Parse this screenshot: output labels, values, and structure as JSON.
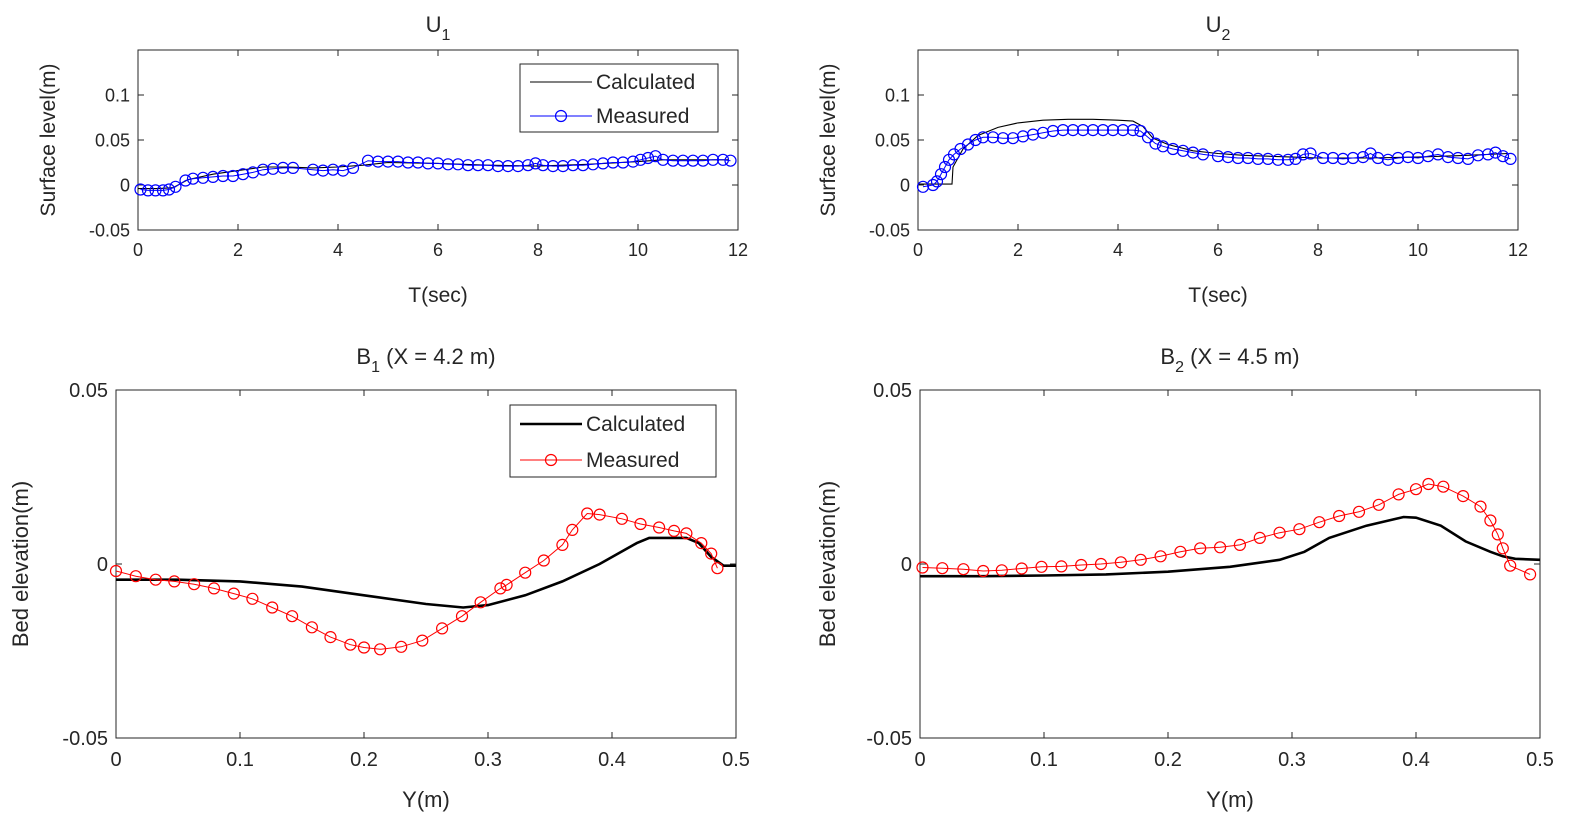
{
  "chart_data": [
    {
      "id": "u1",
      "type": "line",
      "title": "U",
      "title_sub": "1",
      "title_suffix": "",
      "xlabel": "T(sec)",
      "ylabel": "Surface level(m)",
      "xlim": [
        0,
        12
      ],
      "ylim": [
        -0.05,
        0.15
      ],
      "xticks": [
        0,
        2,
        4,
        6,
        8,
        10,
        12
      ],
      "yticks": [
        -0.05,
        0,
        0.05,
        0.1
      ],
      "xtick_labels": [
        "0",
        "2",
        "4",
        "6",
        "8",
        "10",
        "12"
      ],
      "ytick_labels": [
        "-0.05",
        "0",
        "0.05",
        "0.1"
      ],
      "legend": "top-right",
      "marker_color": "#0000ff",
      "series": [
        {
          "name": "Calculated",
          "style": "thin-black-line",
          "color": "#000000",
          "x": [
            0,
            0.4,
            0.7,
            1,
            1.5,
            2,
            2.5,
            3,
            3.5,
            4,
            4.5,
            5,
            6,
            7,
            8,
            9,
            10,
            10.5,
            11,
            11.8
          ],
          "y": [
            -0.004,
            -0.004,
            -0.003,
            0.006,
            0.012,
            0.016,
            0.02,
            0.02,
            0.019,
            0.02,
            0.022,
            0.025,
            0.024,
            0.022,
            0.021,
            0.023,
            0.026,
            0.028,
            0.028,
            0.028
          ]
        },
        {
          "name": "Measured",
          "style": "blue-circles",
          "color": "#0000ff",
          "x": [
            0.05,
            0.2,
            0.35,
            0.5,
            0.62,
            0.75,
            0.95,
            1.1,
            1.3,
            1.5,
            1.7,
            1.9,
            2.1,
            2.3,
            2.5,
            2.7,
            2.9,
            3.1,
            3.5,
            3.7,
            3.9,
            4.1,
            4.3,
            4.6,
            4.8,
            5.0,
            5.2,
            5.4,
            5.6,
            5.8,
            6.0,
            6.2,
            6.4,
            6.6,
            6.8,
            7.0,
            7.2,
            7.4,
            7.6,
            7.8,
            7.95,
            8.1,
            8.3,
            8.5,
            8.7,
            8.9,
            9.1,
            9.3,
            9.5,
            9.7,
            9.9,
            10.05,
            10.2,
            10.35,
            10.5,
            10.7,
            10.9,
            11.1,
            11.3,
            11.5,
            11.7,
            11.85
          ],
          "y": [
            -0.005,
            -0.006,
            -0.006,
            -0.006,
            -0.005,
            -0.002,
            0.005,
            0.007,
            0.008,
            0.009,
            0.01,
            0.01,
            0.012,
            0.014,
            0.017,
            0.018,
            0.019,
            0.019,
            0.017,
            0.016,
            0.017,
            0.016,
            0.019,
            0.027,
            0.026,
            0.026,
            0.026,
            0.025,
            0.025,
            0.024,
            0.024,
            0.023,
            0.023,
            0.022,
            0.022,
            0.022,
            0.021,
            0.021,
            0.021,
            0.022,
            0.024,
            0.022,
            0.021,
            0.021,
            0.022,
            0.022,
            0.023,
            0.024,
            0.025,
            0.025,
            0.026,
            0.028,
            0.03,
            0.032,
            0.028,
            0.027,
            0.027,
            0.027,
            0.027,
            0.028,
            0.028,
            0.027
          ]
        }
      ]
    },
    {
      "id": "u2",
      "type": "line",
      "title": "U",
      "title_sub": "2",
      "title_suffix": "",
      "xlabel": "T(sec)",
      "ylabel": "Surface level(m)",
      "xlim": [
        0,
        12
      ],
      "ylim": [
        -0.05,
        0.15
      ],
      "xticks": [
        0,
        2,
        4,
        6,
        8,
        10,
        12
      ],
      "yticks": [
        -0.05,
        0,
        0.05,
        0.1
      ],
      "xtick_labels": [
        "0",
        "2",
        "4",
        "6",
        "8",
        "10",
        "12"
      ],
      "ytick_labels": [
        "-0.05",
        "0",
        "0.05",
        "0.1"
      ],
      "legend": "none",
      "marker_color": "#0000ff",
      "series": [
        {
          "name": "Calculated",
          "style": "thin-black-line",
          "color": "#000000",
          "x": [
            0,
            0.68,
            0.7,
            0.9,
            1.2,
            1.6,
            2.0,
            2.5,
            3.0,
            3.5,
            4.0,
            4.3,
            4.5,
            4.7,
            5.0,
            5.5,
            6.0,
            6.5,
            7.0,
            7.5,
            8.0,
            9.0,
            10.0,
            11.0,
            11.8
          ],
          "y": [
            0.001,
            0.001,
            0.02,
            0.04,
            0.055,
            0.064,
            0.069,
            0.072,
            0.073,
            0.073,
            0.072,
            0.071,
            0.065,
            0.052,
            0.045,
            0.038,
            0.035,
            0.033,
            0.032,
            0.031,
            0.03,
            0.03,
            0.031,
            0.033,
            0.035
          ]
        },
        {
          "name": "Measured",
          "style": "blue-circles",
          "color": "#0000ff",
          "x": [
            0.1,
            0.3,
            0.38,
            0.46,
            0.54,
            0.62,
            0.72,
            0.85,
            1.0,
            1.15,
            1.3,
            1.5,
            1.7,
            1.9,
            2.1,
            2.3,
            2.5,
            2.7,
            2.9,
            3.1,
            3.3,
            3.5,
            3.7,
            3.9,
            4.1,
            4.3,
            4.45,
            4.6,
            4.75,
            4.9,
            5.1,
            5.3,
            5.5,
            5.7,
            6.0,
            6.2,
            6.4,
            6.6,
            6.8,
            7.0,
            7.2,
            7.4,
            7.55,
            7.7,
            7.85,
            8.1,
            8.3,
            8.5,
            8.7,
            8.9,
            9.05,
            9.2,
            9.4,
            9.6,
            9.8,
            10.0,
            10.2,
            10.4,
            10.6,
            10.8,
            11.0,
            11.2,
            11.4,
            11.55,
            11.7,
            11.85
          ],
          "y": [
            -0.002,
            0.0,
            0.004,
            0.012,
            0.02,
            0.028,
            0.034,
            0.04,
            0.045,
            0.05,
            0.053,
            0.053,
            0.052,
            0.052,
            0.054,
            0.056,
            0.058,
            0.06,
            0.061,
            0.061,
            0.061,
            0.061,
            0.061,
            0.061,
            0.061,
            0.061,
            0.06,
            0.053,
            0.046,
            0.043,
            0.04,
            0.038,
            0.036,
            0.034,
            0.032,
            0.031,
            0.03,
            0.03,
            0.029,
            0.029,
            0.028,
            0.028,
            0.029,
            0.034,
            0.035,
            0.03,
            0.03,
            0.029,
            0.03,
            0.031,
            0.035,
            0.03,
            0.028,
            0.03,
            0.031,
            0.03,
            0.032,
            0.034,
            0.031,
            0.03,
            0.029,
            0.033,
            0.034,
            0.036,
            0.032,
            0.029
          ]
        }
      ]
    },
    {
      "id": "b1",
      "type": "line",
      "title": "B",
      "title_sub": "1",
      "title_suffix": " (X = 4.2 m)",
      "xlabel": "Y(m)",
      "ylabel": "Bed elevation(m)",
      "xlim": [
        0,
        0.5
      ],
      "ylim": [
        -0.05,
        0.05
      ],
      "xticks": [
        0,
        0.1,
        0.2,
        0.3,
        0.4,
        0.5
      ],
      "yticks": [
        -0.05,
        0,
        0.05
      ],
      "xtick_labels": [
        "0",
        "0.1",
        "0.2",
        "0.3",
        "0.4",
        "0.5"
      ],
      "ytick_labels": [
        "-0.05",
        "0",
        "0.05"
      ],
      "legend": "top-right",
      "marker_color": "#ff0000",
      "series": [
        {
          "name": "Calculated",
          "style": "thick-black-line",
          "color": "#000000",
          "x": [
            0,
            0.05,
            0.1,
            0.15,
            0.2,
            0.25,
            0.28,
            0.3,
            0.33,
            0.36,
            0.39,
            0.42,
            0.43,
            0.46,
            0.47,
            0.48,
            0.49,
            0.5
          ],
          "y": [
            -0.0045,
            -0.0045,
            -0.005,
            -0.0065,
            -0.009,
            -0.0115,
            -0.0125,
            -0.0118,
            -0.009,
            -0.005,
            0.0,
            0.006,
            0.0075,
            0.0075,
            0.006,
            0.002,
            -0.0005,
            -0.0005
          ]
        },
        {
          "name": "Measured",
          "style": "red-circles",
          "color": "#ff0000",
          "x": [
            0.0,
            0.016,
            0.032,
            0.047,
            0.063,
            0.079,
            0.095,
            0.11,
            0.126,
            0.142,
            0.158,
            0.173,
            0.189,
            0.2,
            0.213,
            0.23,
            0.247,
            0.263,
            0.279,
            0.294,
            0.31,
            0.315,
            0.33,
            0.345,
            0.36,
            0.368,
            0.38,
            0.39,
            0.408,
            0.423,
            0.438,
            0.45,
            0.46,
            0.472,
            0.48,
            0.485
          ],
          "y": [
            -0.002,
            -0.0035,
            -0.0045,
            -0.005,
            -0.0058,
            -0.007,
            -0.0085,
            -0.01,
            -0.0125,
            -0.015,
            -0.0182,
            -0.021,
            -0.0232,
            -0.024,
            -0.0245,
            -0.0238,
            -0.022,
            -0.0185,
            -0.015,
            -0.011,
            -0.007,
            -0.006,
            -0.0025,
            0.001,
            0.0055,
            0.0098,
            0.0145,
            0.0142,
            0.013,
            0.0115,
            0.0105,
            0.0095,
            0.0088,
            0.006,
            0.003,
            -0.0012
          ]
        }
      ]
    },
    {
      "id": "b2",
      "type": "line",
      "title": "B",
      "title_sub": "2",
      "title_suffix": " (X = 4.5 m)",
      "xlabel": "Y(m)",
      "ylabel": "Bed elevation(m)",
      "xlim": [
        0,
        0.5
      ],
      "ylim": [
        -0.05,
        0.05
      ],
      "xticks": [
        0,
        0.1,
        0.2,
        0.3,
        0.4,
        0.5
      ],
      "yticks": [
        -0.05,
        0,
        0.05
      ],
      "xtick_labels": [
        "0",
        "0.1",
        "0.2",
        "0.3",
        "0.4",
        "0.5"
      ],
      "ytick_labels": [
        "-0.05",
        "0",
        "0.05"
      ],
      "legend": "none",
      "marker_color": "#ff0000",
      "series": [
        {
          "name": "Calculated",
          "style": "thick-black-line",
          "color": "#000000",
          "x": [
            0,
            0.05,
            0.1,
            0.15,
            0.2,
            0.25,
            0.29,
            0.31,
            0.33,
            0.36,
            0.39,
            0.4,
            0.42,
            0.44,
            0.46,
            0.47,
            0.48,
            0.5
          ],
          "y": [
            -0.0035,
            -0.0035,
            -0.0033,
            -0.003,
            -0.0022,
            -0.0008,
            0.0012,
            0.0035,
            0.0075,
            0.011,
            0.0135,
            0.0133,
            0.011,
            0.0065,
            0.0035,
            0.0022,
            0.0015,
            0.0012
          ]
        },
        {
          "name": "Measured",
          "style": "red-circles",
          "color": "#ff0000",
          "x": [
            0.002,
            0.018,
            0.035,
            0.051,
            0.066,
            0.082,
            0.098,
            0.114,
            0.13,
            0.146,
            0.162,
            0.178,
            0.194,
            0.21,
            0.226,
            0.242,
            0.258,
            0.274,
            0.29,
            0.306,
            0.322,
            0.338,
            0.354,
            0.37,
            0.386,
            0.4,
            0.41,
            0.422,
            0.438,
            0.452,
            0.46,
            0.466,
            0.47,
            0.476,
            0.492
          ],
          "y": [
            -0.001,
            -0.0012,
            -0.0015,
            -0.002,
            -0.0018,
            -0.0013,
            -0.0008,
            -0.0007,
            -0.0003,
            0.0,
            0.0005,
            0.0012,
            0.0022,
            0.0035,
            0.0045,
            0.0048,
            0.0055,
            0.0075,
            0.009,
            0.01,
            0.012,
            0.0138,
            0.015,
            0.017,
            0.02,
            0.0215,
            0.023,
            0.0222,
            0.0195,
            0.0165,
            0.0125,
            0.0085,
            0.0045,
            -0.0005,
            -0.003
          ]
        }
      ]
    }
  ]
}
